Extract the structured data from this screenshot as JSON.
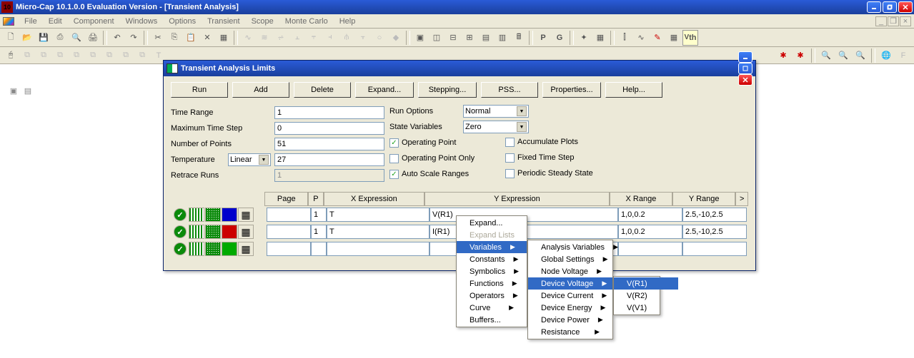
{
  "main_title": "Micro-Cap 10.1.0.0 Evaluation Version - [Transient Analysis]",
  "menus": [
    "File",
    "Edit",
    "Component",
    "Windows",
    "Options",
    "Transient",
    "Scope",
    "Monte Carlo",
    "Help"
  ],
  "dialog": {
    "title": "Transient Analysis Limits",
    "buttons": [
      "Run",
      "Add",
      "Delete",
      "Expand...",
      "Stepping...",
      "PSS...",
      "Properties...",
      "Help..."
    ],
    "labels": {
      "time_range": "Time Range",
      "max_time_step": "Maximum Time Step",
      "num_points": "Number of Points",
      "temperature": "Temperature",
      "retrace_runs": "Retrace Runs",
      "run_options": "Run Options",
      "state_vars": "State Variables",
      "op_point": "Operating Point",
      "op_point_only": "Operating Point Only",
      "auto_scale": "Auto Scale Ranges",
      "accumulate": "Accumulate Plots",
      "fixed_step": "Fixed Time Step",
      "pss": "Periodic Steady State"
    },
    "values": {
      "time_range": "1",
      "max_time_step": "0",
      "num_points": "51",
      "temp_mode": "Linear",
      "temperature": "27",
      "retrace_runs": "1",
      "run_options": "Normal",
      "state_vars": "Zero"
    },
    "checks": {
      "op_point": true,
      "op_point_only": false,
      "auto_scale": true,
      "accumulate": false,
      "fixed_step": false,
      "pss": false
    },
    "grid_headers": {
      "page": "Page",
      "p": "P",
      "xexp": "X Expression",
      "yexp": "Y Expression",
      "xr": "X Range",
      "yr": "Y Range",
      "arrow": ">"
    },
    "rows": [
      {
        "color": "#0000cc",
        "page": "",
        "p": "1",
        "xexp": "T",
        "yexp": "V(R1)",
        "xr": "1,0,0.2",
        "yr": "2.5,-10,2.5"
      },
      {
        "color": "#cc0000",
        "page": "",
        "p": "1",
        "xexp": "T",
        "yexp": "I(R1)",
        "xr": "1,0,0.2",
        "yr": "2.5,-10,2.5"
      },
      {
        "color": "#00aa00",
        "page": "",
        "p": "",
        "xexp": "",
        "yexp": "",
        "xr": "",
        "yr": ""
      }
    ]
  },
  "ctx1": {
    "items": [
      {
        "label": "Expand...",
        "dis": false,
        "sub": false
      },
      {
        "label": "Expand Lists",
        "dis": true,
        "sub": false
      },
      {
        "label": "Variables",
        "dis": false,
        "sub": true,
        "hi": true
      },
      {
        "label": "Constants",
        "dis": false,
        "sub": true
      },
      {
        "label": "Symbolics",
        "dis": false,
        "sub": true
      },
      {
        "label": "Functions",
        "dis": false,
        "sub": true
      },
      {
        "label": "Operators",
        "dis": false,
        "sub": true
      },
      {
        "label": "Curve",
        "dis": false,
        "sub": true
      },
      {
        "label": "Buffers...",
        "dis": false,
        "sub": false
      }
    ]
  },
  "ctx2": {
    "items": [
      {
        "label": "Analysis Variables",
        "sub": true
      },
      {
        "label": "Global Settings",
        "sub": true
      },
      {
        "label": "Node Voltage",
        "sub": true
      },
      {
        "label": "Device Voltage",
        "sub": true,
        "hi": true
      },
      {
        "label": "Device Current",
        "sub": true
      },
      {
        "label": "Device Energy",
        "sub": true
      },
      {
        "label": "Device Power",
        "sub": true
      },
      {
        "label": "Resistance",
        "sub": true
      }
    ]
  },
  "ctx3": {
    "items": [
      {
        "label": "V(R1)",
        "hi": true
      },
      {
        "label": "V(R2)"
      },
      {
        "label": "V(V1)"
      }
    ]
  }
}
